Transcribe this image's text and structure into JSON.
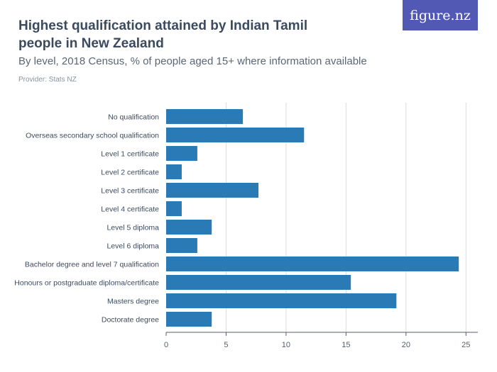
{
  "header": {
    "title": "Highest qualification attained by Indian Tamil people in New Zealand",
    "subtitle": "By level, 2018 Census, % of people aged 15+ where information available",
    "provider": "Provider: Stats NZ",
    "logo": "figure.nz"
  },
  "colors": {
    "bar": "#2a7ab5",
    "grid": "#dcdcdc",
    "axis": "#555e6b",
    "title": "#3c4a5e",
    "logo_bg": "#5159b4"
  },
  "chart_data": {
    "type": "bar",
    "orientation": "horizontal",
    "categories": [
      "No qualification",
      "Overseas secondary school qualification",
      "Level 1 certificate",
      "Level 2 certificate",
      "Level 3 certificate",
      "Level 4 certificate",
      "Level 5 diploma",
      "Level 6 diploma",
      "Bachelor degree and level 7 qualification",
      "Honours or postgraduate diploma/certificate",
      "Masters degree",
      "Doctorate degree"
    ],
    "values": [
      6.4,
      11.5,
      2.6,
      1.3,
      7.7,
      1.3,
      3.8,
      2.6,
      24.4,
      15.4,
      19.2,
      3.8
    ],
    "xlim": [
      0,
      26
    ],
    "xticks": [
      "0",
      "5",
      "10",
      "15",
      "20",
      "25"
    ],
    "grid": true
  }
}
